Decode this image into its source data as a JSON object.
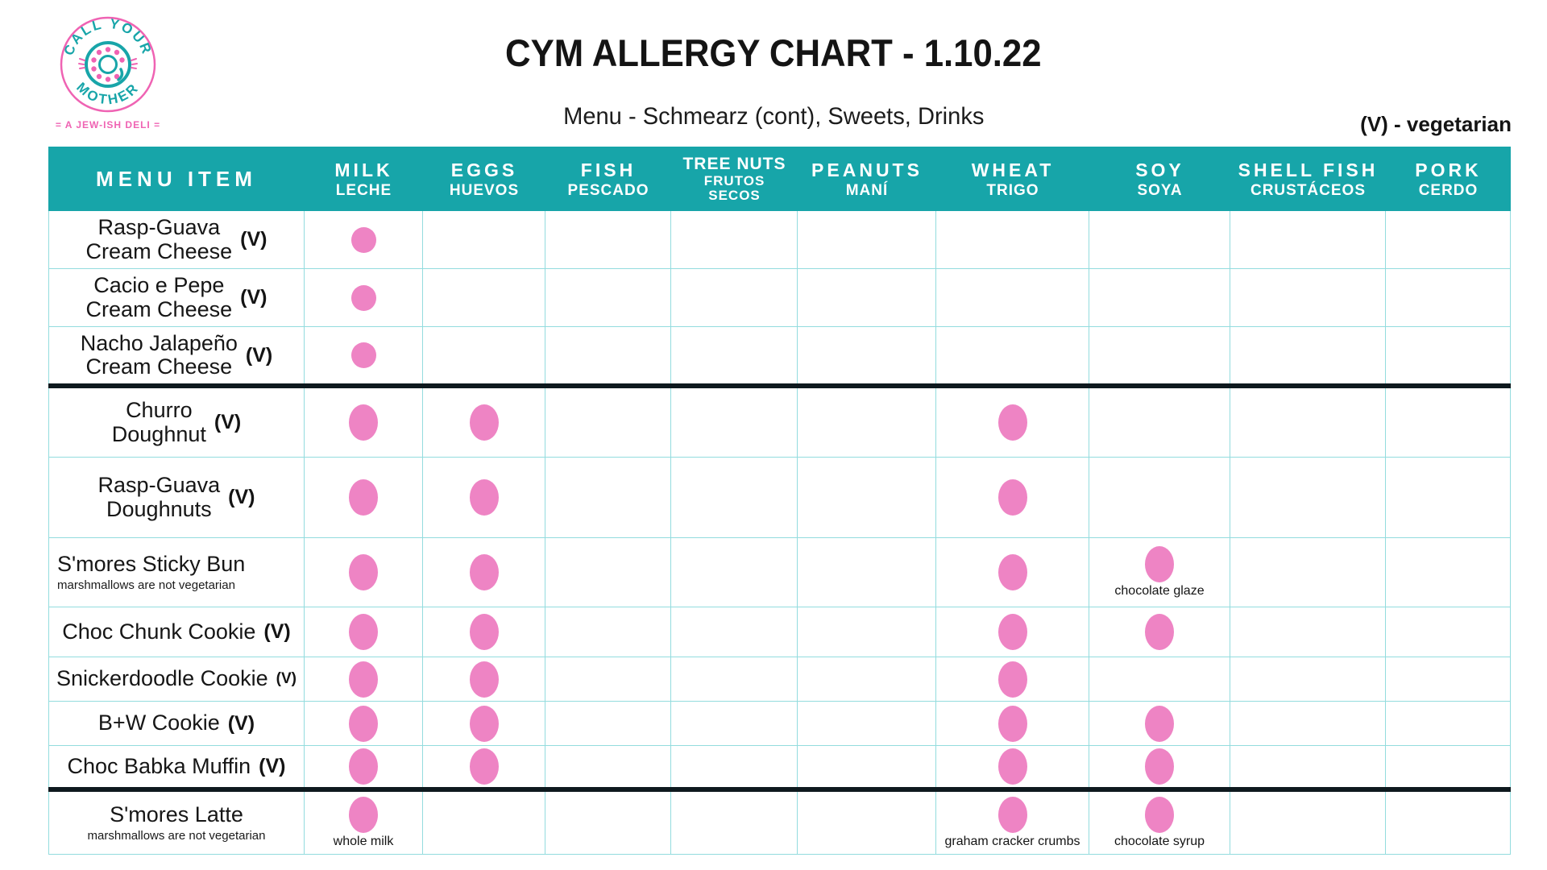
{
  "logo": {
    "arc_top": "CALL YOUR",
    "arc_bottom": "MOTHER",
    "tagline": "= A JEW-ISH DELI ="
  },
  "header": {
    "title": "CYM ALLERGY CHART - 1.10.22",
    "subtitle": "Menu - Schmearz (cont), Sweets, Drinks",
    "legend": "(V) - vegetarian"
  },
  "colors": {
    "teal": "#17a5a9",
    "pink_dot": "#ee84c4",
    "logo_pink": "#ef63b3",
    "grid_line": "#93dcde",
    "section_divider": "#0e191e"
  },
  "table": {
    "columns": [
      {
        "id": "menu_item",
        "lines": [
          "MENU ITEM"
        ]
      },
      {
        "id": "milk",
        "lines": [
          "MILK",
          "LECHE"
        ]
      },
      {
        "id": "eggs",
        "lines": [
          "EGGS",
          "HUEVOS"
        ]
      },
      {
        "id": "fish",
        "lines": [
          "FISH",
          "PESCADO"
        ]
      },
      {
        "id": "tree_nuts",
        "lines": [
          "TREE NUTS",
          "FRUTOS",
          "SECOS"
        ]
      },
      {
        "id": "peanuts",
        "lines": [
          "PEANUTS",
          "MANÍ"
        ]
      },
      {
        "id": "wheat",
        "lines": [
          "WHEAT",
          "TRIGO"
        ]
      },
      {
        "id": "soy",
        "lines": [
          "SOY",
          "SOYA"
        ]
      },
      {
        "id": "shellfish",
        "lines": [
          "SHELL FISH",
          "CRUSTÁCEOS"
        ]
      },
      {
        "id": "pork",
        "lines": [
          "PORK",
          "CERDO"
        ]
      }
    ],
    "rows": [
      {
        "name": "Rasp-Guava\nCream Cheese",
        "veg": "(V)",
        "note": "",
        "divider_after": false,
        "allergens": {
          "milk": ""
        }
      },
      {
        "name": "Cacio e Pepe\nCream Cheese",
        "veg": "(V)",
        "note": "",
        "divider_after": false,
        "allergens": {
          "milk": ""
        }
      },
      {
        "name": "Nacho Jalapeño\nCream Cheese",
        "veg": "(V)",
        "note": "",
        "divider_after": true,
        "allergens": {
          "milk": ""
        }
      },
      {
        "name": "Churro\nDoughnut",
        "veg": "(V)",
        "note": "",
        "divider_after": false,
        "allergens": {
          "milk": "",
          "eggs": "",
          "wheat": ""
        }
      },
      {
        "name": "Rasp-Guava\nDoughnuts",
        "veg": "(V)",
        "note": "",
        "divider_after": false,
        "allergens": {
          "milk": "",
          "eggs": "",
          "wheat": ""
        }
      },
      {
        "name": "S'mores Sticky Bun",
        "veg": "",
        "note": "marshmallows are not vegetarian",
        "align": "left",
        "divider_after": false,
        "allergens": {
          "milk": "",
          "eggs": "",
          "wheat": "",
          "soy": "chocolate glaze"
        }
      },
      {
        "name": "Choc Chunk Cookie",
        "veg": "(V)",
        "note": "",
        "divider_after": false,
        "allergens": {
          "milk": "",
          "eggs": "",
          "wheat": "",
          "soy": ""
        }
      },
      {
        "name": "Snickerdoodle Cookie",
        "veg": "(V)",
        "veg_small": true,
        "note": "",
        "divider_after": false,
        "allergens": {
          "milk": "",
          "eggs": "",
          "wheat": ""
        }
      },
      {
        "name": "B+W Cookie",
        "veg": "(V)",
        "note": "",
        "divider_after": false,
        "allergens": {
          "milk": "",
          "eggs": "",
          "wheat": "",
          "soy": ""
        }
      },
      {
        "name": "Choc Babka Muffin",
        "veg": "(V)",
        "note": "",
        "divider_after": true,
        "allergens": {
          "milk": "",
          "eggs": "",
          "wheat": "",
          "soy": ""
        }
      },
      {
        "name": "S'mores Latte",
        "veg": "",
        "note": "marshmallows are not vegetarian",
        "divider_after": false,
        "allergens": {
          "milk": "whole milk",
          "wheat": "graham cracker crumbs",
          "soy": "chocolate syrup"
        }
      }
    ]
  }
}
